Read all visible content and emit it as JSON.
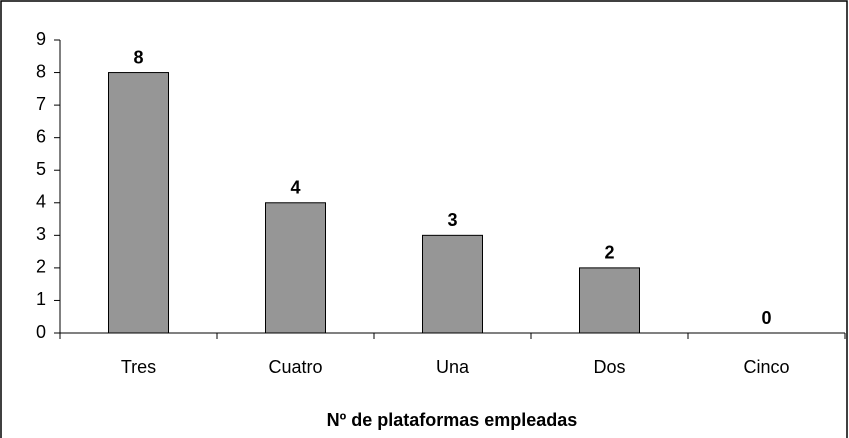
{
  "chart_data": {
    "type": "bar",
    "x_label": "Nº de plataformas empleadas",
    "categories": [
      "Tres",
      "Cuatro",
      "Una",
      "Dos",
      "Cinco"
    ],
    "values": [
      8,
      4,
      3,
      2,
      0
    ],
    "color": "#969696",
    "ylim": [
      0,
      9
    ],
    "yticks": [
      0,
      1,
      2,
      3,
      4,
      5,
      6,
      7,
      8,
      9
    ],
    "grid": false
  }
}
